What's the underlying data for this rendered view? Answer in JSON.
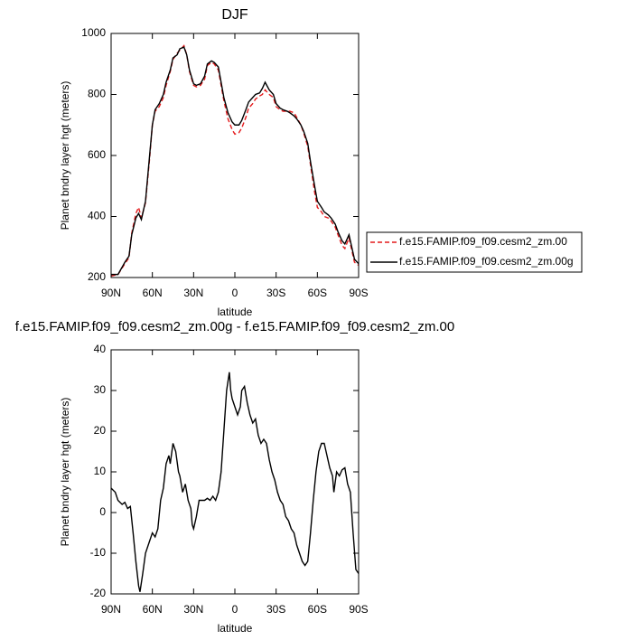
{
  "chart_data": [
    {
      "type": "line",
      "title": "DJF",
      "xlabel": "latitude",
      "ylabel": "Planet bndry layer hgt (meters)",
      "x": [
        90,
        85,
        80,
        77,
        75,
        72,
        70,
        68,
        65,
        62,
        60,
        58,
        55,
        52,
        50,
        47,
        45,
        42,
        40,
        37,
        35,
        33,
        30,
        28,
        25,
        22,
        20,
        17,
        15,
        12,
        10,
        8,
        5,
        2,
        0,
        -3,
        -5,
        -8,
        -10,
        -13,
        -15,
        -18,
        -20,
        -22,
        -25,
        -28,
        -30,
        -33,
        -35,
        -38,
        -40,
        -43,
        -45,
        -48,
        -50,
        -53,
        -55,
        -58,
        -60,
        -63,
        -65,
        -68,
        -70,
        -73,
        -75,
        -78,
        -80,
        -83,
        -85,
        -87,
        -90
      ],
      "series": [
        {
          "name": "f.e15.FAMIP.f09_f09.cesm2_zm.00",
          "color": "#e41a1c",
          "dashed": true,
          "values": [
            205,
            210,
            245,
            265,
            345,
            410,
            430,
            395,
            445,
            590,
            700,
            745,
            760,
            790,
            830,
            875,
            915,
            935,
            945,
            960,
            930,
            875,
            830,
            825,
            830,
            850,
            895,
            905,
            900,
            880,
            830,
            780,
            720,
            685,
            670,
            675,
            690,
            725,
            755,
            770,
            785,
            795,
            800,
            815,
            800,
            790,
            760,
            750,
            745,
            745,
            745,
            740,
            725,
            700,
            675,
            630,
            570,
            480,
            430,
            415,
            400,
            395,
            385,
            365,
            340,
            305,
            295,
            330,
            290,
            250,
            240
          ]
        },
        {
          "name": "f.e15.FAMIP.f09_f09.cesm2_zm.00g",
          "color": "#000000",
          "dashed": false,
          "values": [
            210,
            210,
            250,
            270,
            340,
            395,
            410,
            390,
            450,
            600,
            700,
            750,
            770,
            800,
            840,
            880,
            920,
            930,
            950,
            955,
            930,
            880,
            835,
            830,
            835,
            860,
            900,
            910,
            905,
            890,
            840,
            790,
            740,
            710,
            700,
            700,
            715,
            750,
            775,
            790,
            800,
            805,
            820,
            840,
            815,
            800,
            770,
            755,
            750,
            745,
            740,
            730,
            720,
            700,
            680,
            640,
            580,
            500,
            450,
            430,
            415,
            405,
            395,
            375,
            350,
            320,
            310,
            340,
            300,
            260,
            245
          ]
        }
      ],
      "xlim": [
        90,
        -90
      ],
      "xticks": [
        {
          "value": 90,
          "label": "90N"
        },
        {
          "value": 60,
          "label": "60N"
        },
        {
          "value": 30,
          "label": "30N"
        },
        0,
        {
          "value": -30,
          "label": "30S"
        },
        {
          "value": -60,
          "label": "60S"
        },
        {
          "value": -90,
          "label": "90S"
        }
      ],
      "ylim": [
        200,
        1000
      ],
      "yticks": [
        200,
        400,
        600,
        800,
        1000
      ],
      "grid": false,
      "legend": "right"
    },
    {
      "type": "line",
      "title": "f.e15.FAMIP.f09_f09.cesm2_zm.00g - f.e15.FAMIP.f09_f09.cesm2_zm.00",
      "xlabel": "latitude",
      "ylabel": "Planet bndry layer hgt (meters)",
      "x": [
        90,
        87,
        85,
        82,
        80,
        78,
        76,
        74,
        72,
        70,
        69,
        67,
        65,
        62,
        60,
        58,
        56,
        54,
        52,
        50,
        48,
        47,
        45,
        43,
        41,
        40,
        38,
        36,
        35,
        34,
        32,
        31,
        30,
        28,
        26,
        24,
        22,
        20,
        18,
        16,
        14,
        12,
        10,
        8,
        6,
        4,
        3,
        2,
        0,
        -2,
        -4,
        -5,
        -7,
        -9,
        -11,
        -13,
        -15,
        -17,
        -19,
        -21,
        -23,
        -25,
        -27,
        -29,
        -31,
        -33,
        -35,
        -37,
        -39,
        -41,
        -43,
        -45,
        -47,
        -49,
        -51,
        -53,
        -55,
        -57,
        -59,
        -61,
        -63,
        -65,
        -67,
        -69,
        -71,
        -72,
        -74,
        -76,
        -78,
        -80,
        -82,
        -84,
        -86,
        -88,
        -90
      ],
      "values": [
        6,
        5,
        3,
        2,
        2.5,
        1,
        1.5,
        -5,
        -12,
        -18,
        -19.5,
        -15,
        -10,
        -7,
        -5,
        -6,
        -4,
        3,
        6,
        12,
        14,
        12,
        17,
        15,
        10,
        9,
        5,
        7,
        5,
        3,
        1,
        -3,
        -4,
        -1,
        3,
        3,
        3,
        3.5,
        3,
        4,
        3,
        5,
        10,
        20,
        30,
        34.5,
        30,
        28,
        26,
        24,
        26,
        30,
        31,
        27,
        24,
        22,
        23,
        19,
        17,
        18,
        17,
        13,
        10,
        8,
        5,
        3,
        2,
        -1,
        -2,
        -4,
        -5,
        -8,
        -10,
        -12,
        -13,
        -12,
        -5,
        3,
        10,
        15,
        17,
        17,
        14,
        11,
        9,
        5,
        10,
        9,
        10.5,
        11,
        7,
        5,
        -5,
        -14,
        -15
      ],
      "color": "#000000",
      "xlim": [
        90,
        -90
      ],
      "xticks": [
        {
          "value": 90,
          "label": "90N"
        },
        {
          "value": 60,
          "label": "60N"
        },
        {
          "value": 30,
          "label": "30N"
        },
        0,
        {
          "value": -30,
          "label": "30S"
        },
        {
          "value": -60,
          "label": "60S"
        },
        {
          "value": -90,
          "label": "90S"
        }
      ],
      "ylim": [
        -20,
        40
      ],
      "yticks": [
        -20,
        -10,
        0,
        10,
        20,
        30,
        40
      ],
      "grid": false
    }
  ]
}
